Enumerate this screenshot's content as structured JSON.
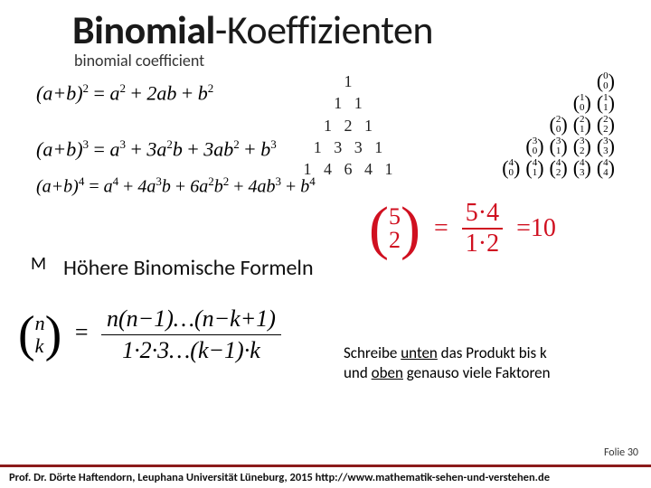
{
  "title_bold": "Binomial",
  "title_thin": "-Koeffizienten",
  "subtitle": "binomial coefficient",
  "formulas": {
    "f2": "(a+b)² = a² + 2ab + b²",
    "f3": "(a+b)³ = a³ + 3a²b + 3ab² + b³",
    "f4": "(a+b)⁴ = a⁴ + 4a³b + 6a²b² + 4ab³ + b⁴"
  },
  "pascal_rows": [
    "1",
    "1   1",
    "1   2   1",
    "1   3   3   1",
    "1   4   6   4   1"
  ],
  "binom_rows": [
    [
      [
        0,
        0
      ]
    ],
    [
      [
        1,
        0
      ],
      [
        1,
        1
      ]
    ],
    [
      [
        2,
        0
      ],
      [
        2,
        1
      ],
      [
        2,
        2
      ]
    ],
    [
      [
        3,
        0
      ],
      [
        3,
        1
      ],
      [
        3,
        2
      ],
      [
        3,
        3
      ]
    ],
    [
      [
        4,
        0
      ],
      [
        4,
        1
      ],
      [
        4,
        2
      ],
      [
        4,
        3
      ],
      [
        4,
        4
      ]
    ]
  ],
  "m_label": "M",
  "hohere": "Höhere Binomische Formeln",
  "handwrite": {
    "n": "5",
    "k": "2",
    "num": "5·4",
    "den": "1·2",
    "result": "=10"
  },
  "general": {
    "n": "n",
    "k": "k",
    "numerator": "n(n−1)…(n−k+1)",
    "denominator": "1·2·3…(k−1)·k"
  },
  "note_line1_a": "Schreibe ",
  "note_line1_u": "unten",
  "note_line1_b": " das Produkt bis k",
  "note_line2_a": "und ",
  "note_line2_u": "oben",
  "note_line2_b": " genauso viele Faktoren",
  "folie": "Folie 30",
  "footer_author": "Prof. Dr. Dörte Haftendorn, Leuphana Universität Lüneburg, 2015  ",
  "footer_url": "http://www.mathematik-sehen-und-verstehen.de",
  "colors": {
    "accent_border": "#8b1a1a",
    "handwrite": "#d01020"
  }
}
